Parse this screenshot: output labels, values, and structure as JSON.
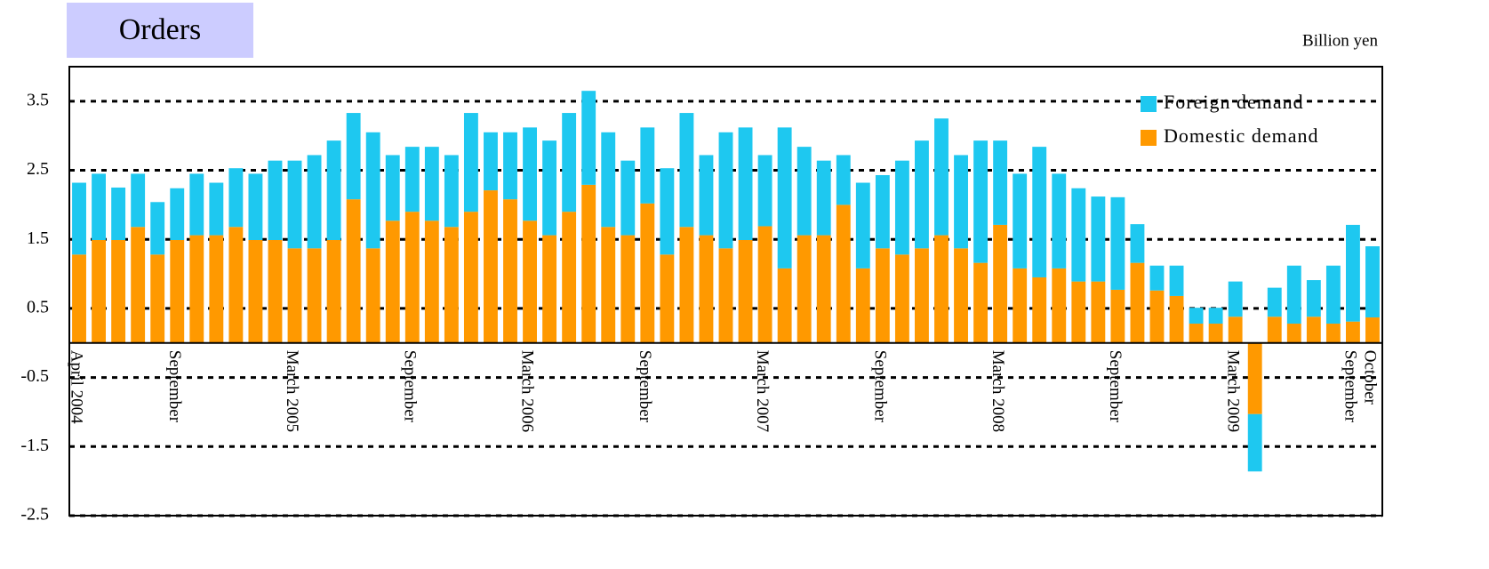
{
  "chart_data": {
    "type": "bar",
    "stacked": true,
    "title": "Orders",
    "unit_label": "Billion yen",
    "categories": [
      "April 2004",
      null,
      null,
      null,
      null,
      "September",
      null,
      null,
      null,
      null,
      null,
      "March 2005",
      null,
      null,
      null,
      null,
      null,
      "September",
      null,
      null,
      null,
      null,
      null,
      "March 2006",
      null,
      null,
      null,
      null,
      null,
      "September",
      null,
      null,
      null,
      null,
      null,
      "March 2007",
      null,
      null,
      null,
      null,
      null,
      "September",
      null,
      null,
      null,
      null,
      null,
      "March 2008",
      null,
      null,
      null,
      null,
      null,
      "September",
      null,
      null,
      null,
      null,
      null,
      "March 2009",
      null,
      null,
      null,
      null,
      null,
      "September",
      "October"
    ],
    "series": [
      {
        "name": "Domestic demand",
        "color": "#ff9900",
        "values": [
          1.28,
          1.49,
          1.49,
          1.68,
          1.28,
          1.49,
          1.56,
          1.56,
          1.68,
          1.49,
          1.49,
          1.37,
          1.37,
          1.49,
          2.08,
          1.37,
          1.77,
          1.9,
          1.77,
          1.68,
          1.9,
          2.21,
          2.08,
          1.77,
          1.56,
          1.9,
          2.29,
          1.68,
          1.56,
          2.02,
          1.28,
          1.68,
          1.56,
          1.37,
          1.49,
          1.69,
          1.08,
          1.56,
          1.56,
          2.0,
          1.08,
          1.37,
          1.28,
          1.37,
          1.56,
          1.37,
          1.16,
          1.71,
          1.08,
          0.95,
          1.08,
          0.89,
          0.89,
          0.77,
          1.16,
          0.76,
          0.68,
          0.28,
          0.28,
          0.38,
          -1.03,
          0.38,
          0.28,
          0.38,
          0.28,
          0.31,
          0.37
        ]
      },
      {
        "name": "Foreign demand",
        "color": "#1ec8f0",
        "values": [
          1.04,
          0.96,
          0.76,
          0.77,
          0.76,
          0.75,
          0.89,
          0.76,
          0.85,
          0.96,
          1.15,
          1.27,
          1.35,
          1.44,
          1.25,
          1.68,
          0.95,
          0.94,
          1.07,
          1.04,
          1.43,
          0.84,
          0.97,
          1.35,
          1.37,
          1.43,
          1.36,
          1.37,
          1.08,
          1.1,
          1.25,
          1.65,
          1.16,
          1.68,
          1.63,
          1.03,
          2.04,
          1.28,
          1.08,
          0.72,
          1.24,
          1.06,
          1.36,
          1.56,
          1.69,
          1.35,
          1.77,
          1.22,
          1.37,
          1.89,
          1.37,
          1.35,
          1.23,
          1.34,
          0.56,
          0.36,
          0.44,
          0.23,
          0.23,
          0.51,
          -0.83,
          0.42,
          0.84,
          0.53,
          0.84,
          1.4,
          1.03
        ]
      }
    ],
    "ylim": [
      -2.5,
      4.0
    ],
    "yticks": [
      -2.5,
      -1.5,
      -0.5,
      0.5,
      1.5,
      2.5,
      3.5
    ],
    "grid": true,
    "legend": "top-right"
  }
}
